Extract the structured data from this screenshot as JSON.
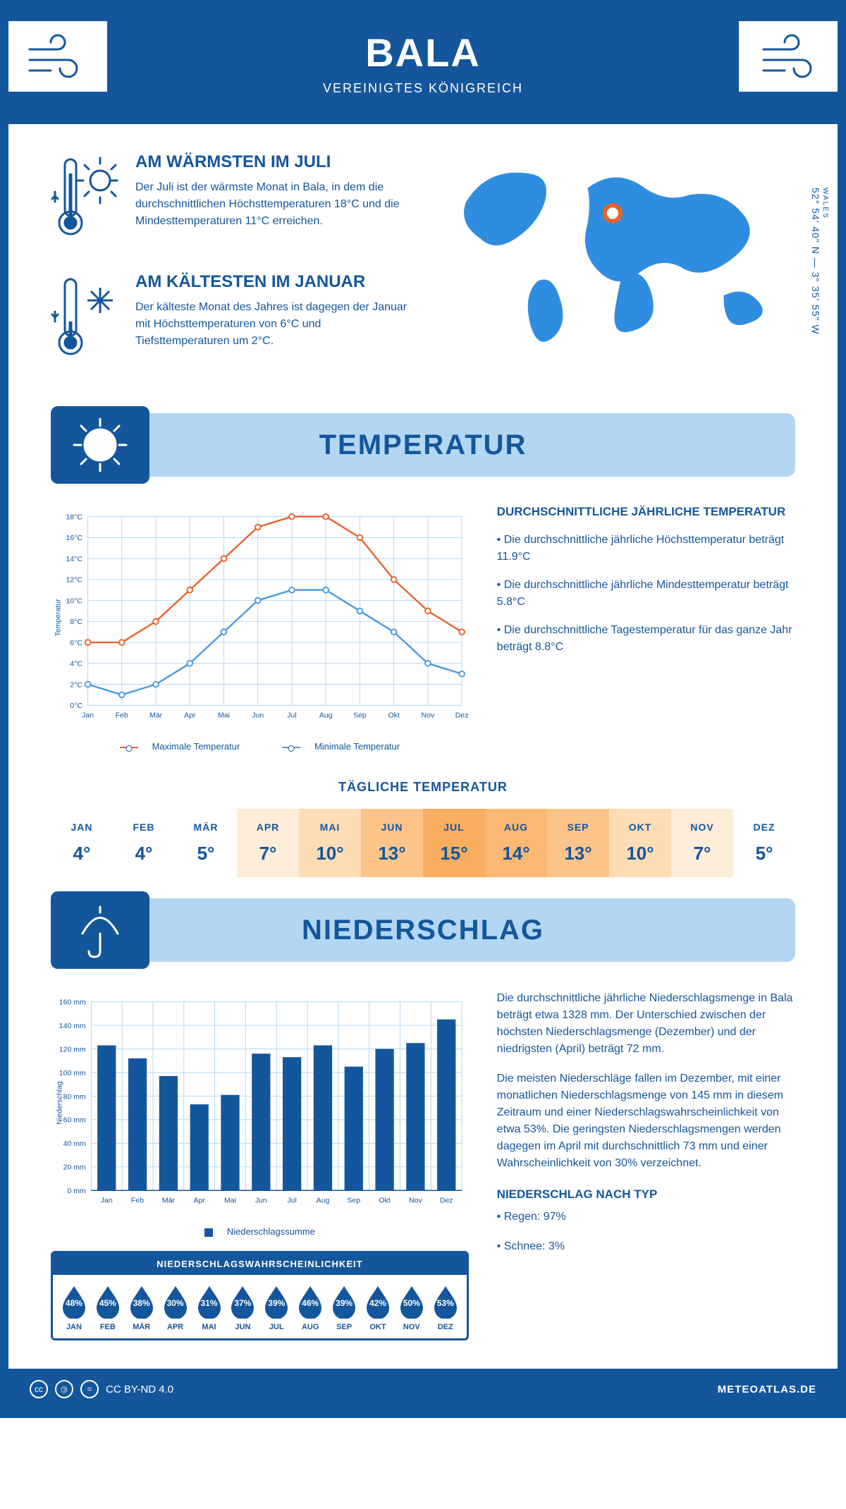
{
  "colors": {
    "primary": "#14569b",
    "light": "#b3d6f2",
    "orange": "#e8622c",
    "blue_line": "#4a9ae0"
  },
  "header": {
    "title": "BALA",
    "subtitle": "VEREINIGTES KÖNIGREICH"
  },
  "coords": {
    "region": "WALES",
    "text": "52° 54' 40\" N — 3° 35' 55\" W"
  },
  "facts": {
    "warm": {
      "title": "AM WÄRMSTEN IM JULI",
      "text": "Der Juli ist der wärmste Monat in Bala, in dem die durchschnittlichen Höchsttemperaturen 18°C und die Mindesttemperaturen 11°C erreichen."
    },
    "cold": {
      "title": "AM KÄLTESTEN IM JANUAR",
      "text": "Der kälteste Monat des Jahres ist dagegen der Januar mit Höchsttemperaturen von 6°C und Tiefsttemperaturen um 2°C."
    }
  },
  "sections": {
    "temp": "TEMPERATUR",
    "precip": "NIEDERSCHLAG"
  },
  "temp_chart": {
    "months": [
      "Jan",
      "Feb",
      "Mär",
      "Apr",
      "Mai",
      "Jun",
      "Jul",
      "Aug",
      "Sep",
      "Okt",
      "Nov",
      "Dez"
    ],
    "max": [
      6,
      6,
      8,
      11,
      14,
      17,
      18,
      18,
      16,
      12,
      9,
      7
    ],
    "min": [
      2,
      1,
      2,
      4,
      7,
      10,
      11,
      11,
      9,
      7,
      4,
      3
    ],
    "ylim": [
      0,
      18
    ],
    "ytick_step": 2,
    "ylabel": "Temperatur",
    "legend_max": "Maximale Temperatur",
    "legend_min": "Minimale Temperatur",
    "max_color": "#e8622c",
    "min_color": "#4a9ae0"
  },
  "temp_info": {
    "heading": "DURCHSCHNITTLICHE JÄHRLICHE TEMPERATUR",
    "b1": "• Die durchschnittliche jährliche Höchsttemperatur beträgt 11.9°C",
    "b2": "• Die durchschnittliche jährliche Mindesttemperatur beträgt 5.8°C",
    "b3": "• Die durchschnittliche Tagestemperatur für das ganze Jahr beträgt 8.8°C"
  },
  "daily_temp": {
    "heading": "TÄGLICHE TEMPERATUR",
    "months": [
      "JAN",
      "FEB",
      "MÄR",
      "APR",
      "MAI",
      "JUN",
      "JUL",
      "AUG",
      "SEP",
      "OKT",
      "NOV",
      "DEZ"
    ],
    "values": [
      4,
      4,
      5,
      7,
      10,
      13,
      15,
      14,
      13,
      10,
      7,
      5
    ],
    "cell_colors": [
      "#ffffff",
      "#ffffff",
      "#ffffff",
      "#fdecd8",
      "#fddcb6",
      "#fbc58a",
      "#f9ad5f",
      "#fab872",
      "#fbc58a",
      "#fddcb6",
      "#fdecd8",
      "#ffffff"
    ]
  },
  "precip_chart": {
    "months": [
      "Jan",
      "Feb",
      "Mär",
      "Apr",
      "Mai",
      "Jun",
      "Jul",
      "Aug",
      "Sep",
      "Okt",
      "Nov",
      "Dez"
    ],
    "values": [
      123,
      112,
      97,
      73,
      81,
      116,
      113,
      123,
      105,
      120,
      125,
      145
    ],
    "ylim": [
      0,
      160
    ],
    "ytick_step": 20,
    "ylabel": "Niederschlag",
    "legend": "Niederschlagssumme",
    "bar_color": "#14569b"
  },
  "precip_text": {
    "p1": "Die durchschnittliche jährliche Niederschlagsmenge in Bala beträgt etwa 1328 mm. Der Unterschied zwischen der höchsten Niederschlagsmenge (Dezember) und der niedrigsten (April) beträgt 72 mm.",
    "p2": "Die meisten Niederschläge fallen im Dezember, mit einer monatlichen Niederschlagsmenge von 145 mm in diesem Zeitraum und einer Niederschlagswahrscheinlichkeit von etwa 53%. Die geringsten Niederschlagsmengen werden dagegen im April mit durchschnittlich 73 mm und einer Wahrscheinlichkeit von 30% verzeichnet.",
    "type_heading": "NIEDERSCHLAG NACH TYP",
    "type1": "• Regen: 97%",
    "type2": "• Schnee: 3%"
  },
  "prob": {
    "heading": "NIEDERSCHLAGSWAHRSCHEINLICHKEIT",
    "months": [
      "JAN",
      "FEB",
      "MÄR",
      "APR",
      "MAI",
      "JUN",
      "JUL",
      "AUG",
      "SEP",
      "OKT",
      "NOV",
      "DEZ"
    ],
    "values": [
      48,
      45,
      38,
      30,
      31,
      37,
      39,
      46,
      39,
      42,
      50,
      53
    ]
  },
  "footer": {
    "license": "CC BY-ND 4.0",
    "site": "METEOATLAS.DE"
  }
}
